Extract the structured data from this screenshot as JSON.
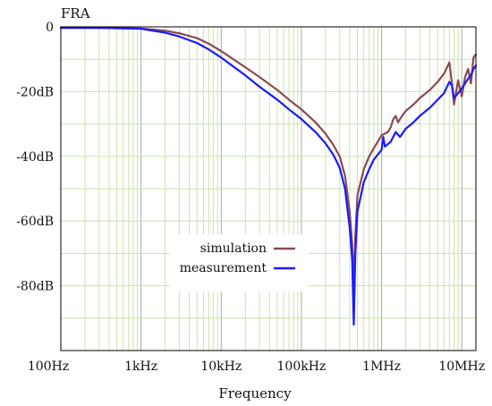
{
  "chart_data": {
    "type": "line",
    "title": "FRA",
    "xlabel": "Frequency",
    "ylabel": "",
    "xscale": "log",
    "xlim_hz": [
      100,
      15000000
    ],
    "ylim_db": [
      -100,
      0
    ],
    "x_ticks": [
      {
        "value": 100,
        "label": "100Hz"
      },
      {
        "value": 1000,
        "label": "1kHz"
      },
      {
        "value": 10000,
        "label": "10kHz"
      },
      {
        "value": 100000,
        "label": "100kHz"
      },
      {
        "value": 1000000,
        "label": "1MHz"
      },
      {
        "value": 10000000,
        "label": "10MHz"
      }
    ],
    "y_ticks": [
      {
        "value": 0,
        "label": "0"
      },
      {
        "value": -20,
        "label": "-20dB"
      },
      {
        "value": -40,
        "label": "-40dB"
      },
      {
        "value": -60,
        "label": "-60dB"
      },
      {
        "value": -80,
        "label": "-80dB"
      }
    ],
    "grid": true,
    "grid_color": "#c8e6a8",
    "legend_position": "lower-center",
    "series": [
      {
        "name": "simulation",
        "color": "#8b4a52",
        "points": [
          [
            100,
            -0.3
          ],
          [
            300,
            -0.3
          ],
          [
            1000,
            -0.5
          ],
          [
            2000,
            -1.2
          ],
          [
            3000,
            -2.0
          ],
          [
            5000,
            -3.5
          ],
          [
            7000,
            -5.2
          ],
          [
            10000,
            -7.5
          ],
          [
            20000,
            -12.5
          ],
          [
            30000,
            -15.5
          ],
          [
            50000,
            -19.5
          ],
          [
            70000,
            -22.5
          ],
          [
            100000,
            -25.5
          ],
          [
            150000,
            -29.5
          ],
          [
            200000,
            -33.0
          ],
          [
            250000,
            -36.5
          ],
          [
            300000,
            -40.0
          ],
          [
            350000,
            -46.0
          ],
          [
            400000,
            -57.0
          ],
          [
            430000,
            -67.0
          ],
          [
            450000,
            -80.0
          ],
          [
            470000,
            -65.0
          ],
          [
            500000,
            -52.0
          ],
          [
            600000,
            -44.0
          ],
          [
            700000,
            -40.0
          ],
          [
            800000,
            -37.5
          ],
          [
            1000000,
            -33.5
          ],
          [
            1200000,
            -32.5
          ],
          [
            1300000,
            -31.0
          ],
          [
            1400000,
            -28.5
          ],
          [
            1500000,
            -27.5
          ],
          [
            1600000,
            -29.5
          ],
          [
            1800000,
            -27.5
          ],
          [
            2000000,
            -26.0
          ],
          [
            2500000,
            -24.0
          ],
          [
            3000000,
            -22.0
          ],
          [
            4000000,
            -19.5
          ],
          [
            5000000,
            -17.0
          ],
          [
            6000000,
            -14.5
          ],
          [
            7000000,
            -11.0
          ],
          [
            7500000,
            -17.0
          ],
          [
            8000000,
            -24.0
          ],
          [
            8500000,
            -20.0
          ],
          [
            9000000,
            -16.5
          ],
          [
            10000000,
            -21.5
          ],
          [
            11000000,
            -15.5
          ],
          [
            12000000,
            -13.0
          ],
          [
            13000000,
            -17.5
          ],
          [
            14000000,
            -9.5
          ],
          [
            15000000,
            -8.5
          ]
        ]
      },
      {
        "name": "measurement",
        "color": "#1a1aff",
        "points": [
          [
            100,
            -0.3
          ],
          [
            300,
            -0.3
          ],
          [
            1000,
            -0.6
          ],
          [
            2000,
            -1.8
          ],
          [
            3000,
            -3.0
          ],
          [
            5000,
            -5.0
          ],
          [
            7000,
            -7.0
          ],
          [
            10000,
            -9.5
          ],
          [
            20000,
            -15.0
          ],
          [
            30000,
            -18.5
          ],
          [
            50000,
            -22.5
          ],
          [
            70000,
            -25.5
          ],
          [
            100000,
            -28.5
          ],
          [
            150000,
            -32.5
          ],
          [
            200000,
            -36.0
          ],
          [
            250000,
            -39.5
          ],
          [
            300000,
            -43.5
          ],
          [
            350000,
            -50.0
          ],
          [
            400000,
            -62.0
          ],
          [
            430000,
            -72.0
          ],
          [
            450000,
            -92.0
          ],
          [
            470000,
            -70.0
          ],
          [
            500000,
            -57.0
          ],
          [
            600000,
            -48.0
          ],
          [
            700000,
            -44.0
          ],
          [
            800000,
            -41.0
          ],
          [
            1000000,
            -38.0
          ],
          [
            1050000,
            -34.0
          ],
          [
            1100000,
            -37.0
          ],
          [
            1300000,
            -35.5
          ],
          [
            1500000,
            -32.5
          ],
          [
            1700000,
            -34.0
          ],
          [
            2000000,
            -31.5
          ],
          [
            2500000,
            -29.5
          ],
          [
            3000000,
            -27.5
          ],
          [
            4000000,
            -25.0
          ],
          [
            5000000,
            -22.5
          ],
          [
            6000000,
            -20.5
          ],
          [
            7000000,
            -17.0
          ],
          [
            7500000,
            -18.0
          ],
          [
            8000000,
            -22.0
          ],
          [
            9000000,
            -20.5
          ],
          [
            10000000,
            -19.0
          ],
          [
            11000000,
            -17.5
          ],
          [
            12000000,
            -16.0
          ],
          [
            13000000,
            -15.0
          ],
          [
            14000000,
            -13.0
          ],
          [
            15000000,
            -12.0
          ]
        ]
      }
    ]
  }
}
